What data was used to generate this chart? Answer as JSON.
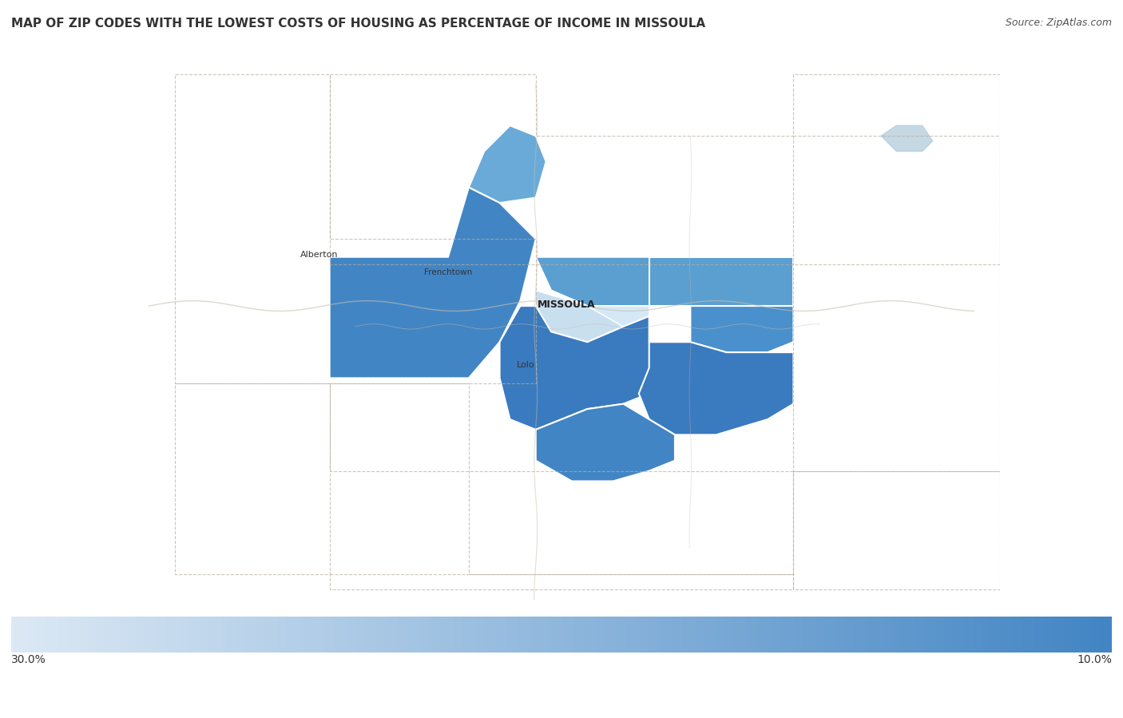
{
  "title": "MAP OF ZIP CODES WITH THE LOWEST COSTS OF HOUSING AS PERCENTAGE OF INCOME IN MISSOULA",
  "source": "Source: ZipAtlas.com",
  "title_fontsize": 11,
  "source_fontsize": 9,
  "title_color": "#333333",
  "background_color": "#ffffff",
  "map_bg_color": "#f0ede8",
  "legend_left_label": "30.0%",
  "legend_right_label": "10.0%",
  "xlim": [
    -114.85,
    -113.15
  ],
  "ylim": [
    46.28,
    47.38
  ],
  "figsize": [
    14.06,
    8.99
  ],
  "dpi": 100
}
